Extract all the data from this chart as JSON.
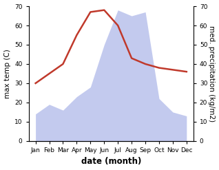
{
  "months": [
    "Jan",
    "Feb",
    "Mar",
    "Apr",
    "May",
    "Jun",
    "Jul",
    "Aug",
    "Sep",
    "Oct",
    "Nov",
    "Dec"
  ],
  "temperature": [
    30,
    35,
    40,
    55,
    67,
    68,
    60,
    43,
    40,
    38,
    37,
    36
  ],
  "precipitation": [
    14,
    19,
    16,
    23,
    28,
    50,
    68,
    65,
    67,
    22,
    15,
    13
  ],
  "temp_color": "#c0392b",
  "precip_color": "#aab4e8",
  "ylim_left": [
    0,
    70
  ],
  "ylim_right": [
    0,
    70
  ],
  "yticks": [
    0,
    10,
    20,
    30,
    40,
    50,
    60,
    70
  ],
  "ylabel_left": "max temp (C)",
  "ylabel_right": "med. precipitation (kg/m2)",
  "xlabel": "date (month)",
  "tick_fontsize": 6.5,
  "label_fontsize": 7.5,
  "xlabel_fontsize": 8.5,
  "background_color": "#ffffff"
}
